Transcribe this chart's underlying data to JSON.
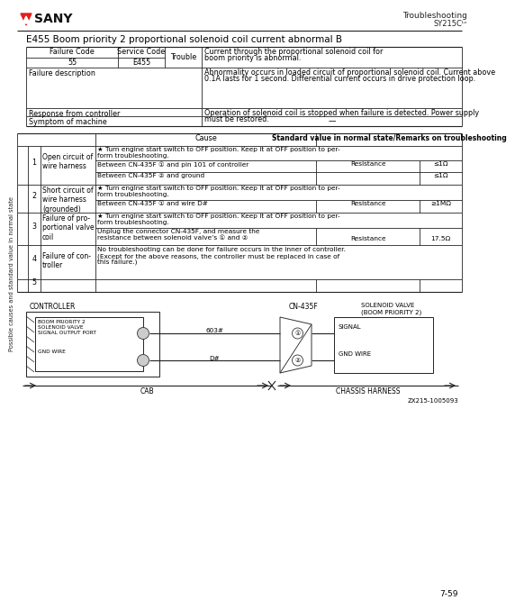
{
  "bg_color": "#ffffff",
  "title": "E455 Boom priority 2 proportional solenoid coil current abnormal B",
  "page_number": "7-59",
  "failure_code": "55",
  "service_code": "E455",
  "trouble_line1": "Current through the proportional solenoid coil for",
  "trouble_line2": "boom priority is abnormal.",
  "failure_desc_line1": "Abnormality occurs in loaded circuit of proportional solenoid coil. Current above",
  "failure_desc_line2": "0.1A lasts for 1 second. Differential current occurs in drive protection loop.",
  "response_line1": "Operation of solenoid coil is stopped when failure is detected. Power supply",
  "response_line2": "must be restored.",
  "symptom": "—",
  "diagram_ref": "ZX215-1005093"
}
